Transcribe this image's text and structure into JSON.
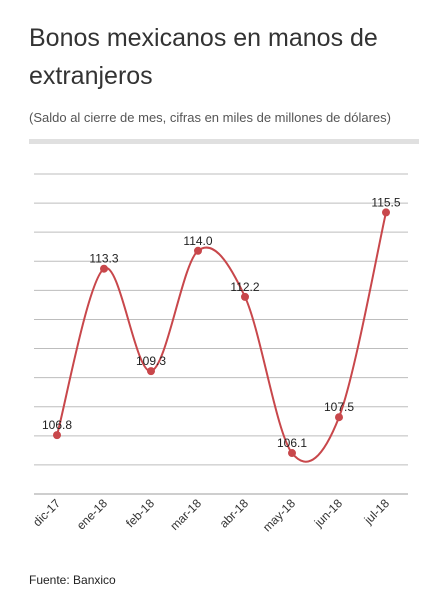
{
  "title": "Bonos mexicanos en manos de extranjeros",
  "subtitle": "(Saldo al cierre de mes, cifras en miles de millones de dólares)",
  "source": "Fuente: Banxico",
  "colors": {
    "line": "#c8474b",
    "grid": "#bdbdbd",
    "text": "#222222"
  },
  "chart_data": {
    "type": "line",
    "title": "Bonos mexicanos en manos de extranjeros",
    "subtitle": "(Saldo al cierre de mes, cifras en miles de millones de dólares)",
    "categories": [
      "dic-17",
      "ene-18",
      "feb-18",
      "mar-18",
      "abr-18",
      "may-18",
      "jun-18",
      "jul-18"
    ],
    "values": [
      106.8,
      113.3,
      109.3,
      114.0,
      112.2,
      106.1,
      107.5,
      115.5
    ],
    "labels": [
      "106.8",
      "113.3",
      "109.3",
      "114.0",
      "112.2",
      "106.1",
      "107.5",
      "115.5"
    ],
    "ylim": [
      104.5,
      117
    ],
    "grid": true,
    "smooth": true
  }
}
